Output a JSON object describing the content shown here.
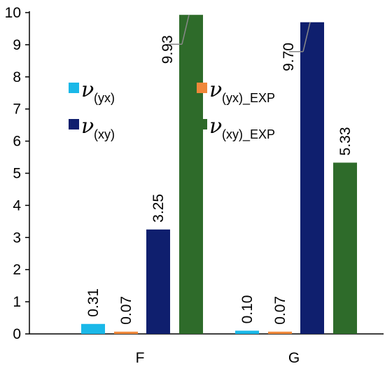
{
  "chart_data": {
    "type": "bar",
    "categories": [
      "F",
      "G"
    ],
    "ylim": [
      0,
      10
    ],
    "yticks": [
      "0",
      "1",
      "2",
      "3",
      "4",
      "5",
      "6",
      "7",
      "8",
      "9",
      "10"
    ],
    "grid": false,
    "series": [
      {
        "name": "(yx)",
        "color": "#1ab8e8",
        "values": [
          0.31,
          0.1
        ],
        "labels": [
          "0.31",
          "0.10"
        ]
      },
      {
        "name": "(yx)_EXP",
        "color": "#f0883a",
        "values": [
          0.07,
          0.07
        ],
        "labels": [
          "0.07",
          "0.07"
        ]
      },
      {
        "name": "(xy)",
        "color": "#0f1f6e",
        "values": [
          3.25,
          9.7
        ],
        "labels": [
          "3.25",
          "9.70"
        ]
      },
      {
        "name": "(xy)_EXP",
        "color": "#2e6b2a",
        "values": [
          9.93,
          5.33
        ],
        "labels": [
          "9.93",
          "5.33"
        ]
      }
    ],
    "legend": {
      "symbol": "ν",
      "placement": "inside-middle"
    }
  }
}
